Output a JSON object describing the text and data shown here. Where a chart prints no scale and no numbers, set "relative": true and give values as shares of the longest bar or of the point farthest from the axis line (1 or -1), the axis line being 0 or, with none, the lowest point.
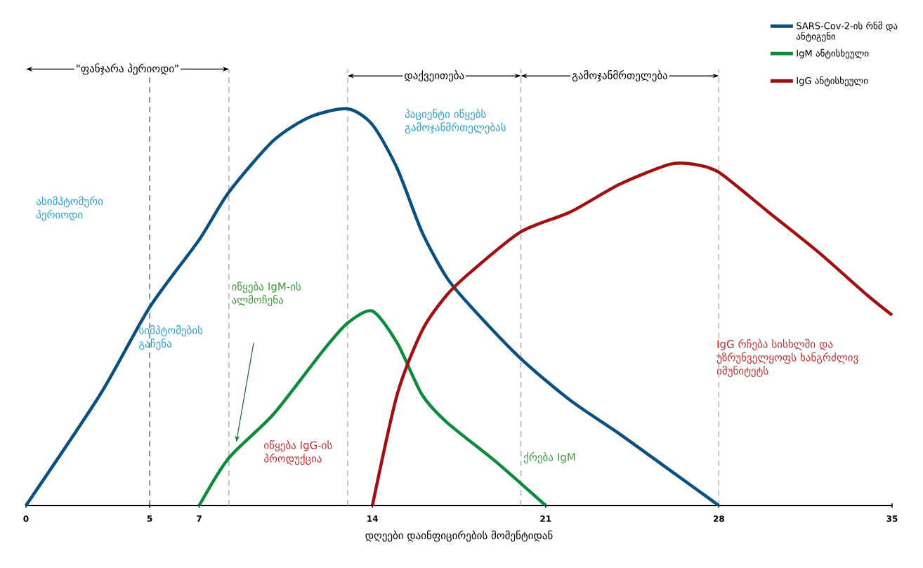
{
  "chart_data": {
    "type": "line",
    "relative": true,
    "xlabel": "დღეები დაინფიცირების მომენტიდან",
    "xlim": [
      0,
      35
    ],
    "xticks": [
      0,
      5,
      7,
      14,
      21,
      28,
      35
    ],
    "grid": false,
    "legend": "top right",
    "marker": "none",
    "line_style": "solid",
    "series": [
      {
        "name": "SARS-Cov-2-ის რნმ და ანტიგენი",
        "color": "#0b4f7f",
        "x": [
          0,
          3,
          5,
          7,
          8.2,
          10,
          11.5,
          13,
          14,
          15,
          16,
          17,
          18,
          20,
          22,
          24,
          26,
          28
        ],
        "values": [
          0,
          0.28,
          0.5,
          0.67,
          0.79,
          0.92,
          0.98,
          1,
          0.96,
          0.85,
          0.69,
          0.575,
          0.5,
          0.37,
          0.265,
          0.18,
          0.09,
          0
        ]
      },
      {
        "name": "IgM ანტისხეული",
        "color": "#0d8a3a",
        "x": [
          7,
          8.2,
          10,
          12,
          13,
          14,
          15,
          16,
          17,
          19,
          21
        ],
        "values": [
          0,
          0.12,
          0.23,
          0.39,
          0.46,
          0.49,
          0.41,
          0.28,
          0.21,
          0.11,
          0
        ]
      },
      {
        "name": "IgG ანტისხეული",
        "color": "#a01010",
        "x": [
          14,
          15,
          16,
          17,
          18,
          20,
          22,
          24,
          26,
          27,
          28,
          30,
          32,
          34,
          35
        ],
        "values": [
          0,
          0.28,
          0.44,
          0.53,
          0.59,
          0.69,
          0.74,
          0.81,
          0.86,
          0.86,
          0.84,
          0.74,
          0.64,
          0.53,
          0.48
        ]
      }
    ],
    "ref_lines": [
      {
        "axis": "x",
        "value": 5,
        "color": "#666666",
        "line_style": "dashed"
      },
      {
        "axis": "x",
        "value": 8.2,
        "color": "#aaaaaa",
        "line_style": "dashed"
      },
      {
        "axis": "x",
        "value": 13,
        "color": "#aaaaaa",
        "line_style": "dashed"
      },
      {
        "axis": "x",
        "value": 20,
        "color": "#aaaaaa",
        "line_style": "dashed"
      },
      {
        "axis": "x",
        "value": 28,
        "color": "#aaaaaa",
        "line_style": "dashed"
      }
    ],
    "annotations": [
      "ასიმპტომური პერიოდი",
      "სიმპტომების გაჩენა",
      "პაციენტი იწყებს გამოჯანმრთელებას",
      "იწყება IgM-ის ალმოჩენა",
      "იწყება IgG-ის პროდუქცია",
      "ქრება IgM",
      "IgG რჩება სისხლში და უზრუნველყოფს ხანგრძლივ იმუნიტეტს",
      "\"ფანჯარა პერიოდი\"",
      "დაქვეითება",
      "გამოჯანმრთელება"
    ]
  }
}
